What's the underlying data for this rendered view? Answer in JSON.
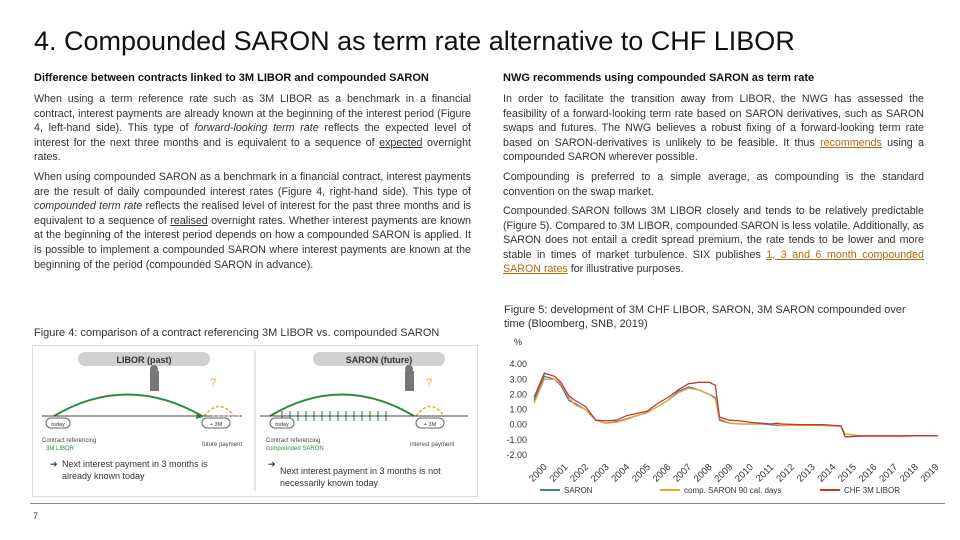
{
  "title": "4. Compounded SARON as term rate alternative to CHF LIBOR",
  "left": {
    "heading": "Difference between contracts linked to 3M LIBOR and compounded SARON",
    "p1": {
      "a": "When using a term reference rate such as 3M LIBOR as a benchmark in a financial contract, interest payments are already known at the beginning of the interest period (Figure 4, left-hand side). This type of ",
      "em": "forward-looking term rate",
      "b": " reflects the expected level of interest for the next three months and is equivalent to a sequence of ",
      "u": "expected",
      "c": " overnight rates."
    },
    "p2": {
      "a": "When using compounded SARON as a benchmark in a financial contract, interest payments are the result of daily compounded interest rates (Figure 4, right-hand side). This type of ",
      "em": "compounded term rate",
      "b": " reflects the realised level of interest for the past three months and is equivalent to a sequence of ",
      "u": "realised",
      "c": " overnight rates. Whether interest payments are known at the beginning of the interest period depends on how a compounded SARON is applied. It is possible to implement a compounded SARON where interest payments are known at the beginning of the period (compounded SARON in advance)."
    }
  },
  "right": {
    "heading": "NWG recommends using compounded SARON as term rate",
    "p1": {
      "a": "In order to facilitate the transition away from LIBOR, the NWG has assessed the feasibility of a forward-looking term rate based on SARON derivatives, such as SARON swaps and futures. The NWG believes a robust fixing of a forward-looking term rate based on SARON-derivatives is unlikely to be feasible. It thus ",
      "link": "recommends",
      "b": " using a compounded SARON wherever possible."
    },
    "p2": "Compounding is preferred to a simple average, as compounding is the standard convention on the swap market.",
    "p3": {
      "a": "Compounded SARON follows 3M LIBOR closely and tends to be relatively predictable (Figure 5). Compared to 3M LIBOR, compounded SARON is less volatile. Additionally, as SARON does not entail a credit spread premium, the rate tends to be lower and more stable in times of market turbulence. SIX publishes ",
      "link": "1, 3 and 6 month compounded SARON rates",
      "b": " for illustrative purposes."
    }
  },
  "figure4": {
    "caption": "Figure 4: comparison of a contract referencing 3M LIBOR vs. compounded SARON",
    "libor": {
      "header": "LIBOR (past)",
      "q": "?",
      "today": "today",
      "plus3m": "+ 3M",
      "contract1": "Contract referencing",
      "contract2": "3M LIBOR",
      "future": "future payment",
      "note1": "Next interest payment in 3 months is",
      "note2": "already known today"
    },
    "saron": {
      "header": "SARON (future)",
      "q": "?",
      "today": "today",
      "plus3m": "+ 3M",
      "contract1": "Contract referencing",
      "contract2": "compounded SARON",
      "future": "interest payment",
      "note1": "Next interest payment in 3 months is not",
      "note2": "necessarily known today"
    }
  },
  "figure5": {
    "caption": "Figure 5: development of 3M CHF LIBOR, SARON, 3M SARON compounded over time (Bloomberg, SNB, 2019)"
  },
  "chart_data": {
    "type": "line",
    "title": "",
    "ylabel": "%",
    "ylim": [
      -2,
      5
    ],
    "yticks": [
      4.0,
      3.0,
      2.0,
      1.0,
      0.0,
      -1.0,
      -2.0
    ],
    "ytick_labels": [
      "4.00",
      "3.00",
      "2.00",
      "1.00",
      "0.00",
      "-1.00",
      "-2.00"
    ],
    "x_labels": [
      "2000",
      "2001",
      "2002",
      "2003",
      "2004",
      "2005",
      "2006",
      "2007",
      "2008",
      "2009",
      "2010",
      "2011",
      "2012",
      "2013",
      "2014",
      "2015",
      "2016",
      "2017",
      "2018",
      "2019"
    ],
    "x": [
      2000.0,
      2000.5,
      2001.0,
      2001.3,
      2001.7,
      2002.0,
      2002.5,
      2003.0,
      2003.5,
      2004.0,
      2004.5,
      2005.0,
      2005.5,
      2006.0,
      2006.5,
      2007.0,
      2007.5,
      2008.0,
      2008.5,
      2008.8,
      2009.0,
      2009.5,
      2010.0,
      2010.5,
      2011.0,
      2011.5,
      2011.8,
      2012.0,
      2013.0,
      2014.0,
      2014.9,
      2015.1,
      2016.0,
      2017.0,
      2018.0,
      2019.0,
      2019.6
    ],
    "series": [
      {
        "name": "SARON",
        "color": "#4a78b5",
        "values": [
          1.6,
          3.2,
          3.0,
          2.6,
          1.6,
          1.4,
          1.0,
          0.3,
          0.1,
          0.2,
          0.4,
          0.6,
          0.8,
          1.2,
          1.6,
          2.2,
          2.5,
          2.3,
          2.0,
          1.8,
          0.3,
          0.1,
          0.05,
          0.05,
          0.05,
          0.0,
          -0.05,
          -0.05,
          -0.02,
          -0.05,
          -0.1,
          -0.8,
          -0.75,
          -0.75,
          -0.75,
          -0.72,
          -0.74
        ]
      },
      {
        "name": "comp. SARON 90 cal. days",
        "color": "#e0a92e",
        "values": [
          1.4,
          3.0,
          3.0,
          2.7,
          1.8,
          1.3,
          1.0,
          0.3,
          0.1,
          0.15,
          0.35,
          0.6,
          0.8,
          1.2,
          1.6,
          2.1,
          2.4,
          2.3,
          2.0,
          1.7,
          0.4,
          0.1,
          0.05,
          0.05,
          0.05,
          0.05,
          0.0,
          -0.05,
          -0.03,
          -0.05,
          -0.1,
          -0.6,
          -0.75,
          -0.75,
          -0.75,
          -0.72,
          -0.74
        ]
      },
      {
        "name": "CHF 3M LIBOR",
        "color": "#c0392b",
        "values": [
          1.8,
          3.4,
          3.2,
          2.8,
          1.9,
          1.6,
          1.2,
          0.3,
          0.25,
          0.3,
          0.6,
          0.75,
          0.9,
          1.4,
          1.8,
          2.3,
          2.7,
          2.8,
          2.8,
          2.6,
          0.5,
          0.3,
          0.25,
          0.15,
          0.1,
          0.05,
          0.1,
          0.05,
          0.0,
          0.0,
          -0.08,
          -0.8,
          -0.73,
          -0.73,
          -0.73,
          -0.72,
          -0.73
        ]
      }
    ],
    "legend": [
      "SARON",
      "comp. SARON 90 cal. days",
      "CHF 3M LIBOR"
    ]
  },
  "page_number": "7"
}
